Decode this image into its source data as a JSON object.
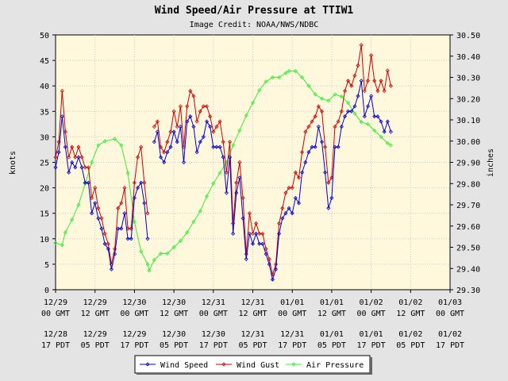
{
  "chart_data": {
    "type": "line",
    "title": "Wind Speed/Air Pressure at TTIW1",
    "subtitle": "Image Credit: NOAA/NWS/NDBC",
    "ylabel_left": "knots",
    "ylabel_right": "inches",
    "ylim_left": [
      0,
      50
    ],
    "ylim_right": [
      29.3,
      30.5
    ],
    "yticks_left": [
      "0",
      "5",
      "10",
      "15",
      "20",
      "25",
      "30",
      "35",
      "40",
      "45",
      "50"
    ],
    "yticks_right": [
      "29.30",
      "29.40",
      "29.50",
      "29.60",
      "29.70",
      "29.80",
      "29.90",
      "30.00",
      "30.10",
      "30.20",
      "30.30",
      "30.40",
      "30.50"
    ],
    "xlim_hours": [
      0,
      120
    ],
    "grid": true,
    "x_ticks_gmt": [
      {
        "date": "12/29",
        "time": "00 GMT"
      },
      {
        "date": "12/29",
        "time": "12 GMT"
      },
      {
        "date": "12/30",
        "time": "00 GMT"
      },
      {
        "date": "12/30",
        "time": "12 GMT"
      },
      {
        "date": "12/31",
        "time": "00 GMT"
      },
      {
        "date": "12/31",
        "time": "12 GMT"
      },
      {
        "date": "01/01",
        "time": "00 GMT"
      },
      {
        "date": "01/01",
        "time": "12 GMT"
      },
      {
        "date": "01/02",
        "time": "00 GMT"
      },
      {
        "date": "01/02",
        "time": "12 GMT"
      },
      {
        "date": "01/03",
        "time": "00 GMT"
      }
    ],
    "x_ticks_pdt": [
      {
        "date": "12/28",
        "time": "17 PDT"
      },
      {
        "date": "12/29",
        "time": "05 PDT"
      },
      {
        "date": "12/29",
        "time": "17 PDT"
      },
      {
        "date": "12/30",
        "time": "05 PDT"
      },
      {
        "date": "12/30",
        "time": "17 PDT"
      },
      {
        "date": "12/31",
        "time": "05 PDT"
      },
      {
        "date": "12/31",
        "time": "17 PDT"
      },
      {
        "date": "01/01",
        "time": "05 PDT"
      },
      {
        "date": "01/01",
        "time": "17 PDT"
      },
      {
        "date": "01/02",
        "time": "05 PDT"
      },
      {
        "date": "01/02",
        "time": "17 PDT"
      }
    ],
    "legend": [
      "Wind Speed",
      "Wind Gust",
      "Air Pressure"
    ],
    "series": [
      {
        "name": "Wind Speed",
        "color": "#0000cc",
        "axis": "left",
        "segments": [
          [
            [
              0,
              24
            ],
            [
              1,
              27
            ],
            [
              2,
              34
            ],
            [
              3,
              28
            ],
            [
              4,
              23
            ],
            [
              5,
              25
            ],
            [
              6,
              24
            ],
            [
              7,
              26
            ],
            [
              8,
              24
            ],
            [
              9,
              21
            ],
            [
              10,
              21
            ],
            [
              11,
              15
            ],
            [
              12,
              17
            ],
            [
              13,
              14
            ],
            [
              14,
              12
            ],
            [
              15,
              9
            ],
            [
              16,
              8
            ],
            [
              17,
              4
            ],
            [
              18,
              7
            ],
            [
              19,
              12
            ],
            [
              20,
              12
            ],
            [
              21,
              15
            ],
            [
              22,
              10
            ],
            [
              23,
              10
            ],
            [
              24,
              18
            ],
            [
              25,
              20
            ],
            [
              26,
              21
            ],
            [
              27,
              17
            ],
            [
              28,
              10
            ]
          ],
          [
            [
              30,
              29
            ],
            [
              31,
              31
            ],
            [
              32,
              26
            ],
            [
              33,
              25
            ],
            [
              34,
              27
            ],
            [
              35,
              28
            ],
            [
              36,
              31
            ],
            [
              37,
              29
            ],
            [
              38,
              32
            ],
            [
              39,
              25
            ],
            [
              40,
              33
            ],
            [
              41,
              34
            ],
            [
              42,
              32
            ],
            [
              43,
              27
            ],
            [
              44,
              29
            ],
            [
              45,
              30
            ],
            [
              46,
              33
            ],
            [
              47,
              32
            ],
            [
              48,
              28
            ],
            [
              49,
              28
            ],
            [
              50,
              28
            ],
            [
              51,
              26
            ],
            [
              52,
              19
            ],
            [
              53,
              26
            ],
            [
              54,
              11
            ],
            [
              55,
              19
            ],
            [
              56,
              22
            ],
            [
              57,
              14
            ],
            [
              58,
              6
            ],
            [
              59,
              11
            ],
            [
              60,
              9
            ],
            [
              61,
              11
            ],
            [
              62,
              9
            ],
            [
              63,
              9
            ],
            [
              64,
              7
            ],
            [
              65,
              5
            ],
            [
              66,
              2
            ],
            [
              67,
              4
            ],
            [
              68,
              11
            ],
            [
              69,
              14
            ],
            [
              70,
              15
            ],
            [
              71,
              16
            ],
            [
              72,
              15
            ],
            [
              73,
              18
            ],
            [
              74,
              17
            ],
            [
              75,
              23
            ],
            [
              76,
              25
            ],
            [
              77,
              27
            ],
            [
              78,
              28
            ],
            [
              79,
              28
            ],
            [
              80,
              32
            ],
            [
              81,
              29
            ],
            [
              82,
              23
            ],
            [
              83,
              16
            ],
            [
              84,
              18
            ],
            [
              85,
              28
            ],
            [
              86,
              28
            ],
            [
              87,
              32
            ],
            [
              88,
              34
            ],
            [
              89,
              35
            ],
            [
              90,
              35
            ],
            [
              91,
              36
            ],
            [
              92,
              38
            ],
            [
              93,
              41
            ],
            [
              94,
              34
            ],
            [
              95,
              36
            ],
            [
              96,
              38
            ],
            [
              97,
              34
            ],
            [
              98,
              34
            ],
            [
              99,
              33
            ],
            [
              100,
              31
            ],
            [
              101,
              33
            ],
            [
              102,
              31
            ]
          ]
        ]
      },
      {
        "name": "Wind Gust",
        "color": "#cc0000",
        "axis": "left",
        "segments": [
          [
            [
              0,
              26
            ],
            [
              1,
              29
            ],
            [
              2,
              39
            ],
            [
              3,
              31
            ],
            [
              4,
              26
            ],
            [
              5,
              28
            ],
            [
              6,
              26
            ],
            [
              7,
              28
            ],
            [
              8,
              26
            ],
            [
              9,
              24
            ],
            [
              10,
              24
            ],
            [
              11,
              18
            ],
            [
              12,
              20
            ],
            [
              13,
              16
            ],
            [
              14,
              14
            ],
            [
              15,
              11
            ],
            [
              16,
              9
            ],
            [
              17,
              5
            ],
            [
              18,
              8
            ],
            [
              19,
              16
            ],
            [
              20,
              17
            ],
            [
              21,
              20
            ],
            [
              22,
              12
            ],
            [
              23,
              12
            ],
            [
              24,
              21
            ],
            [
              25,
              26
            ],
            [
              26,
              28
            ],
            [
              27,
              21
            ],
            [
              28,
              15
            ]
          ],
          [
            [
              30,
              32
            ],
            [
              31,
              33
            ],
            [
              32,
              28
            ],
            [
              33,
              27
            ],
            [
              34,
              29
            ],
            [
              35,
              31
            ],
            [
              36,
              35
            ],
            [
              37,
              32
            ],
            [
              38,
              36
            ],
            [
              39,
              28
            ],
            [
              40,
              36
            ],
            [
              41,
              39
            ],
            [
              42,
              38
            ],
            [
              43,
              33
            ],
            [
              44,
              35
            ],
            [
              45,
              36
            ],
            [
              46,
              36
            ],
            [
              47,
              34
            ],
            [
              48,
              31
            ],
            [
              49,
              32
            ],
            [
              50,
              33
            ],
            [
              51,
              29
            ],
            [
              52,
              23
            ],
            [
              53,
              29
            ],
            [
              54,
              13
            ],
            [
              55,
              21
            ],
            [
              56,
              25
            ],
            [
              57,
              18
            ],
            [
              58,
              7
            ],
            [
              59,
              15
            ],
            [
              60,
              11
            ],
            [
              61,
              13
            ],
            [
              62,
              11
            ],
            [
              63,
              11
            ],
            [
              64,
              8
            ],
            [
              65,
              6
            ],
            [
              66,
              3
            ],
            [
              67,
              5
            ],
            [
              68,
              13
            ],
            [
              69,
              16
            ],
            [
              70,
              19
            ],
            [
              71,
              20
            ],
            [
              72,
              20
            ],
            [
              73,
              23
            ],
            [
              74,
              22
            ],
            [
              75,
              27
            ],
            [
              76,
              31
            ],
            [
              77,
              32
            ],
            [
              78,
              33
            ],
            [
              79,
              34
            ],
            [
              80,
              36
            ],
            [
              81,
              35
            ],
            [
              82,
              28
            ],
            [
              83,
              21
            ],
            [
              84,
              22
            ],
            [
              85,
              32
            ],
            [
              86,
              33
            ],
            [
              87,
              35
            ],
            [
              88,
              39
            ],
            [
              89,
              41
            ],
            [
              90,
              40
            ],
            [
              91,
              42
            ],
            [
              92,
              44
            ],
            [
              93,
              48
            ],
            [
              94,
              39
            ],
            [
              95,
              41
            ],
            [
              96,
              46
            ],
            [
              97,
              41
            ],
            [
              98,
              39
            ],
            [
              99,
              41
            ],
            [
              100,
              39
            ],
            [
              101,
              43
            ],
            [
              102,
              40
            ]
          ]
        ]
      },
      {
        "name": "Air Pressure",
        "color": "#33ee33",
        "axis": "right",
        "segments": [
          [
            [
              0,
              29.52
            ],
            [
              2,
              29.51
            ],
            [
              3,
              29.57
            ],
            [
              5,
              29.63
            ],
            [
              7,
              29.7
            ],
            [
              9,
              29.8
            ],
            [
              11,
              29.9
            ],
            [
              13,
              29.98
            ],
            [
              15,
              30.0
            ],
            [
              18,
              30.01
            ],
            [
              20,
              29.98
            ],
            [
              22,
              29.85
            ],
            [
              24,
              29.62
            ],
            [
              26,
              29.48
            ],
            [
              28,
              29.42
            ],
            [
              28.5,
              29.39
            ],
            [
              30,
              29.44
            ],
            [
              32,
              29.47
            ],
            [
              34,
              29.47
            ],
            [
              36,
              29.5
            ],
            [
              38,
              29.53
            ],
            [
              40,
              29.57
            ],
            [
              42,
              29.62
            ],
            [
              44,
              29.67
            ],
            [
              46,
              29.74
            ],
            [
              48,
              29.8
            ],
            [
              50,
              29.85
            ],
            [
              52,
              29.9
            ],
            [
              54,
              29.98
            ],
            [
              56,
              30.05
            ],
            [
              58,
              30.12
            ],
            [
              60,
              30.18
            ],
            [
              62,
              30.24
            ],
            [
              64,
              30.28
            ],
            [
              66,
              30.3
            ],
            [
              68,
              30.3
            ],
            [
              70,
              30.32
            ],
            [
              71,
              30.33
            ],
            [
              73,
              30.33
            ],
            [
              75,
              30.3
            ],
            [
              77,
              30.26
            ],
            [
              79,
              30.22
            ],
            [
              81,
              30.2
            ],
            [
              83,
              30.19
            ],
            [
              85,
              30.22
            ],
            [
              87,
              30.21
            ],
            [
              89,
              30.18
            ],
            [
              91,
              30.13
            ],
            [
              93,
              30.09
            ],
            [
              95,
              30.08
            ],
            [
              97,
              30.05
            ],
            [
              99,
              30.02
            ],
            [
              101,
              29.99
            ],
            [
              102,
              29.98
            ]
          ]
        ]
      }
    ]
  }
}
